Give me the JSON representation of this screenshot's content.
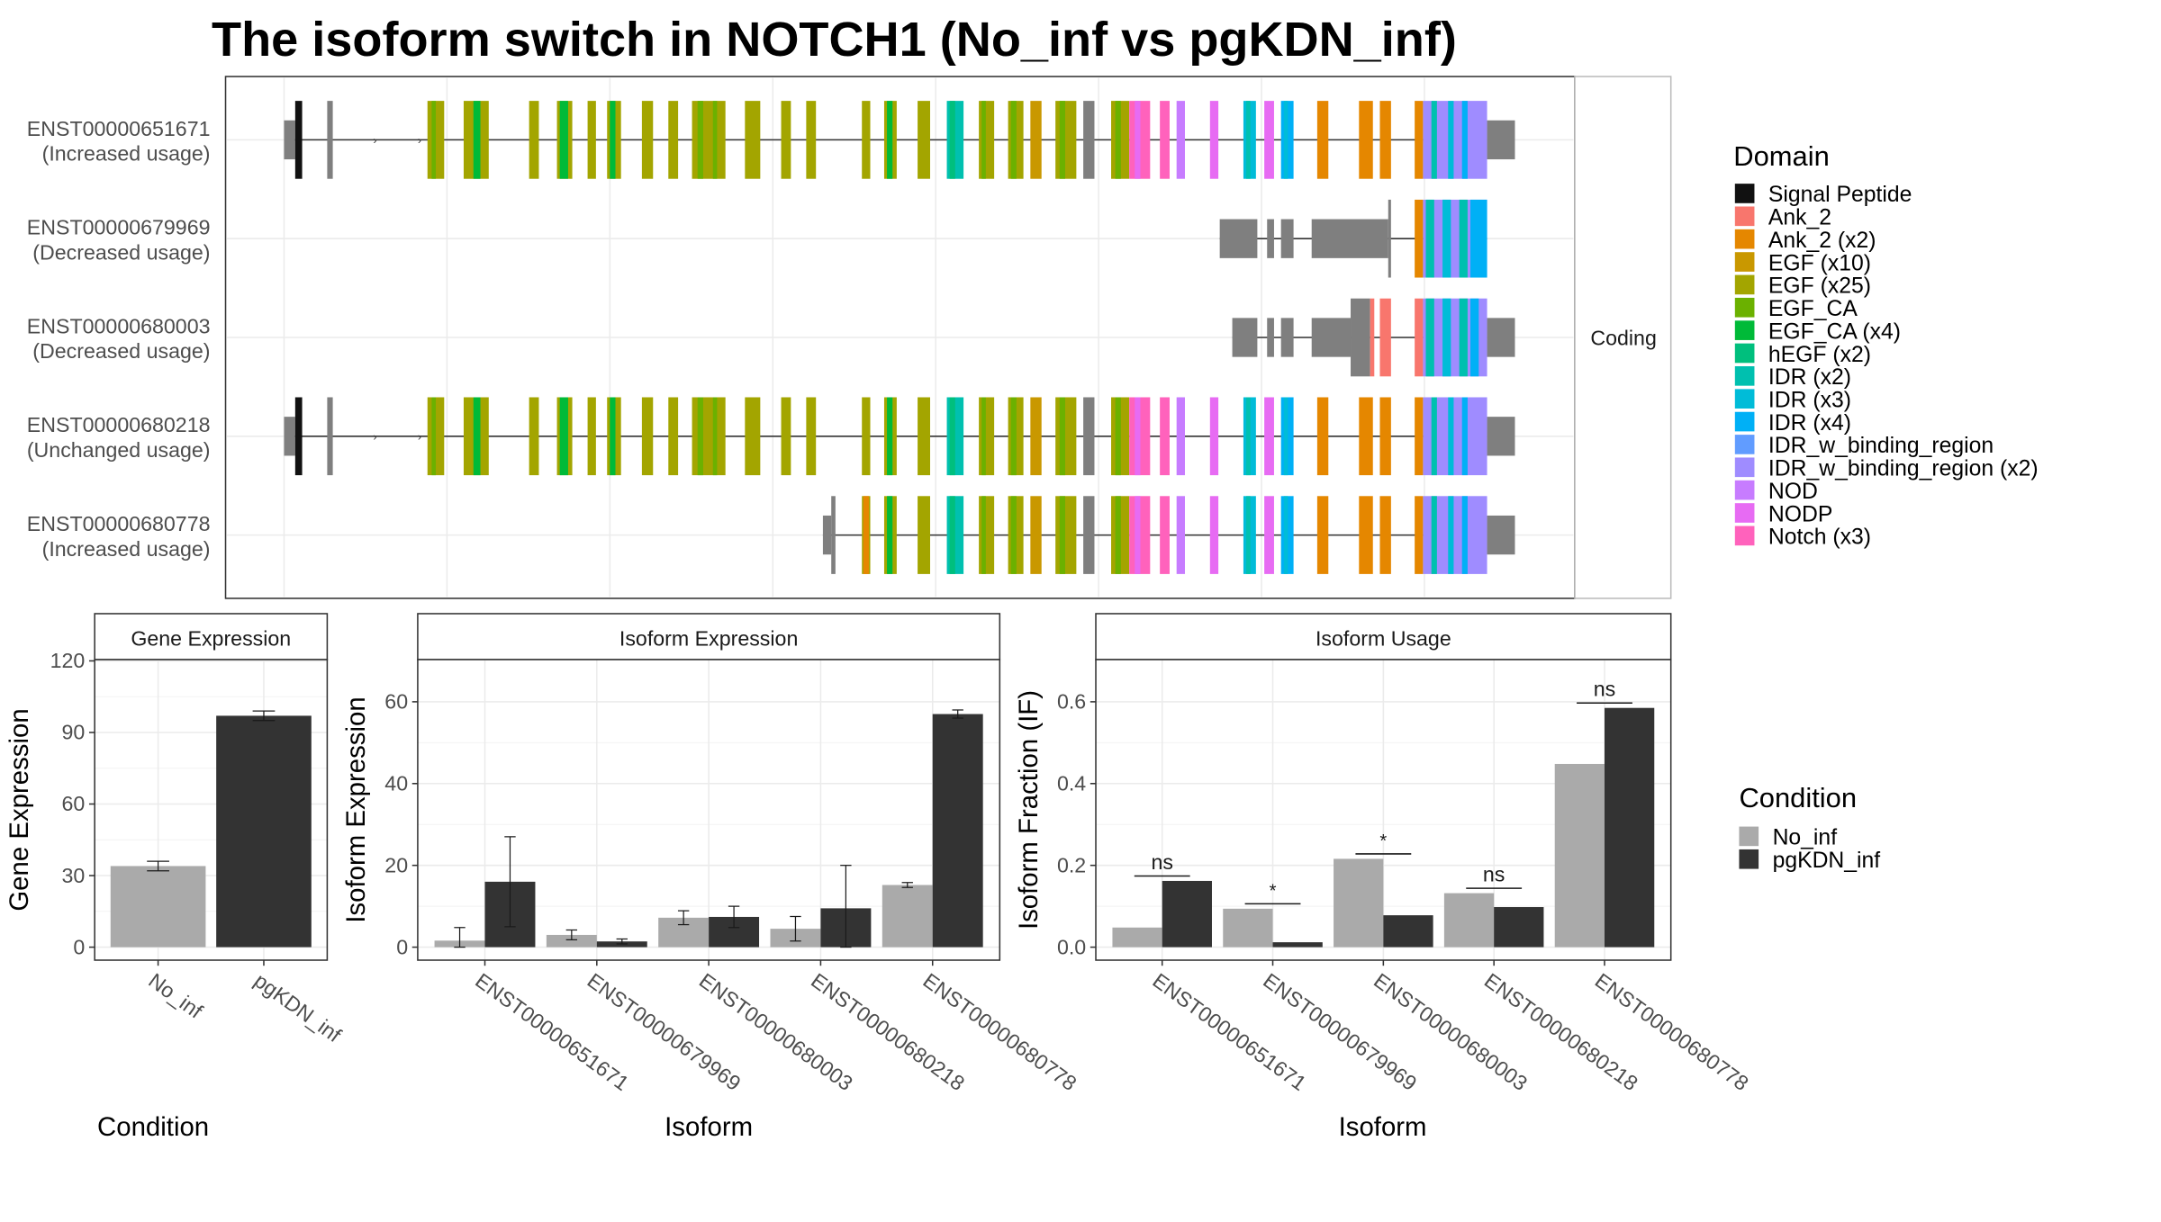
{
  "title": "The isoform switch in NOTCH1 (No_inf vs pgKDN_inf)",
  "structure_panel": {
    "strip_label": "Coding",
    "isoforms": [
      {
        "id": "ENST00000651671",
        "usage": "(Increased usage)",
        "template": "full"
      },
      {
        "id": "ENST00000679969",
        "usage": "(Decreased usage)",
        "template": "short_a"
      },
      {
        "id": "ENST00000680003",
        "usage": "(Decreased usage)",
        "template": "short_b"
      },
      {
        "id": "ENST00000680218",
        "usage": "(Unchanged usage)",
        "template": "full"
      },
      {
        "id": "ENST00000680778",
        "usage": "(Increased usage)",
        "template": "mid"
      }
    ]
  },
  "domain_legend": {
    "title": "Domain",
    "entries": [
      {
        "label": "Signal Peptide",
        "color": "#111111"
      },
      {
        "label": "Ank_2",
        "color": "#F8766D"
      },
      {
        "label": "Ank_2 (x2)",
        "color": "#E58700"
      },
      {
        "label": "EGF (x10)",
        "color": "#C99800"
      },
      {
        "label": "EGF (x25)",
        "color": "#A3A500"
      },
      {
        "label": "EGF_CA",
        "color": "#6BB100"
      },
      {
        "label": "EGF_CA (x4)",
        "color": "#00BA38"
      },
      {
        "label": "hEGF (x2)",
        "color": "#00BF7D"
      },
      {
        "label": "IDR (x2)",
        "color": "#00C0AF"
      },
      {
        "label": "IDR (x3)",
        "color": "#00BCD8"
      },
      {
        "label": "IDR (x4)",
        "color": "#00B0F6"
      },
      {
        "label": "IDR_w_binding_region",
        "color": "#619CFF"
      },
      {
        "label": "IDR_w_binding_region (x2)",
        "color": "#9F8CFF"
      },
      {
        "label": "NOD",
        "color": "#C77CFF"
      },
      {
        "label": "NODP",
        "color": "#E76BF3"
      },
      {
        "label": "Notch (x3)",
        "color": "#FF62BC"
      }
    ]
  },
  "condition_legend": {
    "title": "Condition",
    "entries": [
      {
        "label": "No_inf",
        "color": "#AAAAAA"
      },
      {
        "label": "pgKDN_inf",
        "color": "#333333"
      }
    ]
  },
  "chart_data": [
    {
      "type": "bar",
      "title": "Gene Expression",
      "xlabel": "Condition",
      "ylabel": "Gene Expression",
      "ylim": [
        0,
        120
      ],
      "yticks": [
        0,
        30,
        60,
        90,
        120
      ],
      "categories": [
        "No_inf",
        "pgKDN_inf"
      ],
      "values": [
        34,
        97
      ],
      "errors": [
        [
          32,
          36
        ],
        [
          95,
          99
        ]
      ]
    },
    {
      "type": "bar",
      "title": "Isoform Expression",
      "xlabel": "Isoform",
      "ylabel": "Isoform Expression",
      "ylim": [
        0,
        70
      ],
      "yticks": [
        0,
        20,
        40,
        60
      ],
      "categories": [
        "ENST00000651671",
        "ENST00000679969",
        "ENST00000680003",
        "ENST00000680218",
        "ENST00000680778"
      ],
      "series": [
        {
          "name": "No_inf",
          "values": [
            1.6,
            3.0,
            7.2,
            4.5,
            15.2
          ],
          "errors": [
            [
              0,
              4.8
            ],
            [
              1.8,
              4.2
            ],
            [
              5.5,
              8.9
            ],
            [
              1.5,
              7.5
            ],
            [
              14.6,
              15.8
            ]
          ]
        },
        {
          "name": "pgKDN_inf",
          "values": [
            16,
            1.4,
            7.4,
            9.5,
            57
          ],
          "errors": [
            [
              5,
              27
            ],
            [
              0.8,
              2.0
            ],
            [
              4.8,
              10.0
            ],
            [
              0,
              20
            ],
            [
              56,
              58
            ]
          ]
        }
      ]
    },
    {
      "type": "bar",
      "title": "Isoform Usage",
      "xlabel": "Isoform",
      "ylabel": "Isoform Fraction (IF)",
      "ylim": [
        0,
        0.7
      ],
      "yticks": [
        "0.0",
        "0.2",
        "0.4",
        "0.6"
      ],
      "categories": [
        "ENST00000651671",
        "ENST00000679969",
        "ENST00000680003",
        "ENST00000680218",
        "ENST00000680778"
      ],
      "series": [
        {
          "name": "No_inf",
          "values": [
            0.048,
            0.094,
            0.216,
            0.132,
            0.448
          ]
        },
        {
          "name": "pgKDN_inf",
          "values": [
            0.162,
            0.012,
            0.078,
            0.098,
            0.585
          ]
        }
      ],
      "significance": [
        "ns",
        "*",
        "*",
        "ns",
        "ns"
      ]
    }
  ]
}
